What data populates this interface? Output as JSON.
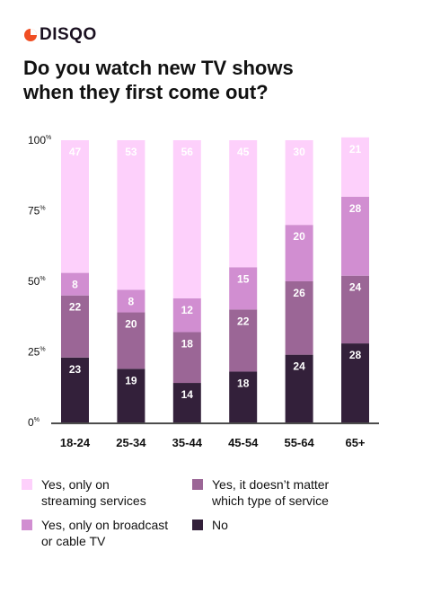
{
  "brand": {
    "name": "DISQO",
    "accent": "#f04e23"
  },
  "title_lines": [
    "Do you watch new TV shows",
    "when they first come out?"
  ],
  "colors": {
    "streaming": "#fdd0fb",
    "broadcast": "#d18ed1",
    "either": "#9b6696",
    "no": "#33203a",
    "axis": "#111111"
  },
  "chart_data": {
    "type": "bar",
    "stacked": true,
    "title": "Do you watch new TV shows when they first come out?",
    "categories": [
      "18-24",
      "25-34",
      "35-44",
      "45-54",
      "55-64",
      "65+"
    ],
    "series": [
      {
        "name": "No",
        "color": "#33203a",
        "values": [
          23,
          19,
          14,
          18,
          24,
          28
        ]
      },
      {
        "name": "Yes, it doesn’t matter which type of service",
        "color": "#9b6696",
        "values": [
          22,
          20,
          18,
          22,
          26,
          24
        ]
      },
      {
        "name": "Yes, only on broadcast or cable TV",
        "color": "#d18ed1",
        "values": [
          8,
          8,
          12,
          15,
          20,
          28
        ]
      },
      {
        "name": "Yes, only on streaming services",
        "color": "#fdd0fb",
        "values": [
          47,
          53,
          56,
          45,
          30,
          21
        ]
      }
    ],
    "ylim": [
      0,
      100
    ],
    "yticks": [
      0,
      25,
      50,
      75,
      100
    ],
    "ytick_suffix": "%",
    "grid": false,
    "legend_position": "bottom"
  },
  "legend": [
    {
      "key": "streaming",
      "lines": [
        "Yes, only on",
        "streaming services"
      ]
    },
    {
      "key": "either",
      "lines": [
        "Yes, it doesn’t matter",
        "which type of service"
      ]
    },
    {
      "key": "broadcast",
      "lines": [
        "Yes, only on broadcast",
        "or cable TV"
      ]
    },
    {
      "key": "no",
      "lines": [
        "No"
      ]
    }
  ]
}
